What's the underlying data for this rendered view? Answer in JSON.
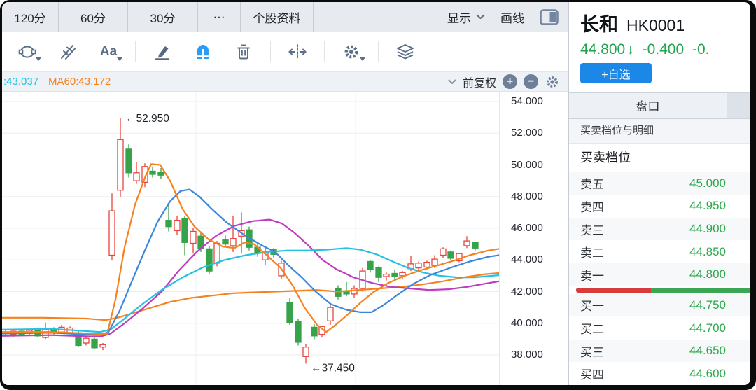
{
  "toolbar_tabs": {
    "items": [
      "120分",
      "60分",
      "30分",
      "···",
      "个股资料"
    ],
    "widths": [
      80,
      98,
      99,
      60,
      103
    ],
    "display_label": "显示",
    "draw_label": "画线"
  },
  "draw_toolbar": {
    "tools": [
      "ellipse-shape-tool",
      "pitchfork-tool",
      "text-tool",
      "brush-tool",
      "magnet-tool",
      "delete-tool",
      "expand-horizontal-tool",
      "settings-tool",
      "layers-tool"
    ],
    "icon_color": "#5d6f88",
    "magnet_color": "#2d9cf4"
  },
  "indicator_bar": {
    "ma_cut_label": ":43.037",
    "ma_cut_color": "#1fc3e6",
    "ma60_label": "MA60:43.172",
    "ma60_color": "#f6821f",
    "adjust_label": "前复权"
  },
  "quote_panel": {
    "name": "长和",
    "code": "HK0001",
    "price": "44.800",
    "direction_arrow": "↓",
    "change": "-0.400",
    "change_pct_partial": "-0.",
    "price_color": "#21a44d",
    "watchlist_button": "+自选",
    "tab": "盘口",
    "detail_header": "买卖档位与明细",
    "section_title": "买卖档位",
    "value_color": "#2ea84e",
    "sells": [
      {
        "label": "卖五",
        "value": "45.000"
      },
      {
        "label": "卖四",
        "value": "44.950"
      },
      {
        "label": "卖三",
        "value": "44.900"
      },
      {
        "label": "卖二",
        "value": "44.850"
      },
      {
        "label": "卖一",
        "value": "44.800"
      }
    ],
    "buys": [
      {
        "label": "买一",
        "value": "44.750"
      },
      {
        "label": "买二",
        "value": "44.700"
      },
      {
        "label": "买三",
        "value": "44.650"
      },
      {
        "label": "买四",
        "value": "44.600"
      }
    ],
    "ratio_bar": {
      "red_pct": 43,
      "green_pct": 57,
      "red": "#d93b3b",
      "green": "#3ba755"
    }
  },
  "chart_data": {
    "type": "candlestick",
    "up_color": "#e8443c",
    "down_color": "#36a24a",
    "grid": {
      "horizontal_step": 2,
      "vertical_x": [
        277,
        505
      ]
    },
    "y_axis": {
      "ticks": [
        "54.000",
        "52.000",
        "50.000",
        "48.000",
        "46.000",
        "44.000",
        "42.000",
        "40.000",
        "38.000"
      ],
      "min": 38,
      "max": 54
    },
    "annotations": [
      {
        "text": "←52.950",
        "candle_index": 14,
        "position": "high"
      },
      {
        "text": "←37.450",
        "candle_index": 37,
        "position": "low"
      }
    ],
    "candles": [
      [
        5,
        39.45,
        39.6,
        39.2,
        39.35
      ],
      [
        16,
        39.3,
        39.55,
        39.15,
        39.5
      ],
      [
        28,
        39.5,
        39.6,
        39.2,
        39.3
      ],
      [
        39,
        39.35,
        39.65,
        39.25,
        39.55
      ],
      [
        51,
        39.6,
        39.7,
        39.1,
        39.2
      ],
      [
        62,
        39.1,
        40.05,
        39.0,
        39.6
      ],
      [
        74,
        39.6,
        39.75,
        39.3,
        39.45
      ],
      [
        85,
        39.45,
        39.9,
        39.35,
        39.75
      ],
      [
        97,
        39.4,
        39.8,
        39.3,
        39.7
      ],
      [
        109,
        39.4,
        39.5,
        38.5,
        38.6
      ],
      [
        120,
        38.75,
        39.15,
        38.6,
        39.05
      ],
      [
        132,
        39.0,
        39.1,
        38.35,
        38.45
      ],
      [
        144,
        38.5,
        38.75,
        38.3,
        38.65
      ],
      [
        157,
        44.3,
        48.2,
        44.0,
        47.1
      ],
      [
        169,
        48.4,
        52.95,
        48.0,
        51.6
      ],
      [
        181,
        51.0,
        51.3,
        49.2,
        49.5
      ],
      [
        192,
        49.0,
        50.2,
        48.8,
        49.5
      ],
      [
        204,
        48.9,
        50.1,
        48.6,
        49.9
      ],
      [
        215,
        49.6,
        49.9,
        49.2,
        49.4
      ],
      [
        227,
        49.55,
        49.8,
        49.1,
        49.35
      ],
      [
        238,
        46.5,
        47.5,
        45.8,
        46.1
      ],
      [
        250,
        45.85,
        46.8,
        45.6,
        46.5
      ],
      [
        261,
        46.6,
        46.8,
        44.3,
        45.1
      ],
      [
        273,
        45.05,
        46.0,
        44.4,
        45.8
      ],
      [
        284,
        45.5,
        45.7,
        44.5,
        44.7
      ],
      [
        296,
        44.7,
        44.9,
        43.1,
        43.3
      ],
      [
        307,
        43.8,
        45.2,
        43.6,
        45.05
      ],
      [
        319,
        45.3,
        45.55,
        44.8,
        45.0
      ],
      [
        330,
        44.9,
        46.8,
        44.5,
        45.35
      ],
      [
        342,
        45.5,
        47.0,
        44.4,
        45.85
      ],
      [
        353,
        45.9,
        46.1,
        44.6,
        44.8
      ],
      [
        365,
        44.8,
        45.0,
        44.2,
        44.45
      ],
      [
        376,
        44.0,
        44.8,
        43.7,
        44.5
      ],
      [
        388,
        44.65,
        44.75,
        44.15,
        44.35
      ],
      [
        399,
        43.0,
        43.95,
        42.8,
        43.8
      ],
      [
        411,
        41.3,
        41.6,
        39.9,
        40.05
      ],
      [
        423,
        40.1,
        40.3,
        38.6,
        38.8
      ],
      [
        434,
        37.9,
        38.7,
        37.45,
        38.5
      ],
      [
        446,
        39.75,
        39.95,
        39.0,
        39.2
      ],
      [
        457,
        39.3,
        39.85,
        39.1,
        39.8
      ],
      [
        469,
        40.15,
        41.2,
        39.9,
        41.0
      ],
      [
        480,
        42.2,
        42.4,
        41.5,
        41.7
      ],
      [
        492,
        42.05,
        42.6,
        41.7,
        41.85
      ],
      [
        503,
        41.85,
        42.4,
        41.6,
        42.2
      ],
      [
        515,
        42.2,
        43.5,
        42.0,
        43.3
      ],
      [
        526,
        43.9,
        44.0,
        43.2,
        43.4
      ],
      [
        538,
        43.5,
        43.6,
        42.6,
        42.9
      ],
      [
        549,
        42.95,
        43.2,
        42.7,
        43.1
      ],
      [
        561,
        43.15,
        43.4,
        42.75,
        42.95
      ],
      [
        572,
        43.0,
        43.3,
        42.8,
        43.2
      ],
      [
        584,
        43.45,
        44.25,
        43.3,
        43.75
      ],
      [
        595,
        43.5,
        43.9,
        43.3,
        43.8
      ],
      [
        607,
        43.55,
        43.95,
        43.4,
        43.85
      ],
      [
        618,
        43.65,
        44.3,
        43.5,
        44.05
      ],
      [
        630,
        44.3,
        44.8,
        44.1,
        44.7
      ],
      [
        641,
        44.5,
        44.6,
        44.0,
        44.1
      ],
      [
        653,
        43.95,
        44.45,
        43.85,
        44.4
      ],
      [
        664,
        44.9,
        45.5,
        44.75,
        45.2
      ],
      [
        676,
        45.1,
        45.15,
        44.6,
        44.75
      ]
    ],
    "ma_lines": [
      {
        "name": "ma-slow-orange",
        "legend": "MA60:43.172",
        "color": "#f6821f",
        "points": [
          [
            0,
            40.35
          ],
          [
            60,
            40.35
          ],
          [
            120,
            40.3
          ],
          [
            148,
            40.2
          ],
          [
            165,
            40.35
          ],
          [
            180,
            40.55
          ],
          [
            210,
            40.95
          ],
          [
            240,
            41.35
          ],
          [
            270,
            41.6
          ],
          [
            300,
            41.75
          ],
          [
            330,
            41.9
          ],
          [
            360,
            41.95
          ],
          [
            390,
            42.0
          ],
          [
            420,
            42.05
          ],
          [
            450,
            42.1
          ],
          [
            480,
            42.0
          ],
          [
            510,
            42.1
          ],
          [
            540,
            42.2
          ],
          [
            570,
            42.3
          ],
          [
            600,
            42.45
          ],
          [
            630,
            42.65
          ],
          [
            660,
            42.9
          ],
          [
            690,
            43.1
          ],
          [
            710,
            43.17
          ]
        ]
      },
      {
        "name": "ma-magenta",
        "legend": null,
        "color": "#be3cbe",
        "points": [
          [
            0,
            39.2
          ],
          [
            70,
            39.25
          ],
          [
            140,
            39.15
          ],
          [
            155,
            39.35
          ],
          [
            175,
            40.0
          ],
          [
            200,
            40.9
          ],
          [
            228,
            42.0
          ],
          [
            252,
            43.3
          ],
          [
            278,
            44.5
          ],
          [
            305,
            45.5
          ],
          [
            332,
            46.15
          ],
          [
            358,
            46.45
          ],
          [
            382,
            46.55
          ],
          [
            400,
            46.3
          ],
          [
            418,
            45.7
          ],
          [
            438,
            44.9
          ],
          [
            458,
            44.0
          ],
          [
            478,
            43.4
          ],
          [
            502,
            42.9
          ],
          [
            528,
            42.55
          ],
          [
            555,
            42.3
          ],
          [
            582,
            42.2
          ],
          [
            610,
            42.1
          ],
          [
            638,
            42.15
          ],
          [
            665,
            42.3
          ],
          [
            690,
            42.5
          ],
          [
            710,
            42.65
          ]
        ]
      },
      {
        "name": "ma-cyan",
        "legend": ":43.037",
        "color": "#25c1e5",
        "points": [
          [
            0,
            39.6
          ],
          [
            70,
            39.65
          ],
          [
            140,
            39.45
          ],
          [
            155,
            39.6
          ],
          [
            175,
            40.3
          ],
          [
            200,
            41.2
          ],
          [
            228,
            42.1
          ],
          [
            258,
            42.9
          ],
          [
            288,
            43.55
          ],
          [
            318,
            44.0
          ],
          [
            348,
            44.3
          ],
          [
            378,
            44.5
          ],
          [
            408,
            44.6
          ],
          [
            438,
            44.6
          ],
          [
            465,
            44.65
          ],
          [
            492,
            44.75
          ],
          [
            512,
            44.65
          ],
          [
            535,
            44.35
          ],
          [
            558,
            43.9
          ],
          [
            580,
            43.5
          ],
          [
            602,
            43.2
          ],
          [
            625,
            43.0
          ],
          [
            650,
            42.9
          ],
          [
            675,
            42.9
          ],
          [
            710,
            43.04
          ]
        ]
      },
      {
        "name": "ma-blue",
        "legend": null,
        "color": "#3b87db",
        "points": [
          [
            0,
            39.35
          ],
          [
            70,
            39.4
          ],
          [
            140,
            39.25
          ],
          [
            152,
            39.45
          ],
          [
            168,
            40.8
          ],
          [
            185,
            42.6
          ],
          [
            203,
            44.5
          ],
          [
            222,
            46.4
          ],
          [
            240,
            47.7
          ],
          [
            255,
            48.35
          ],
          [
            268,
            48.45
          ],
          [
            282,
            48.0
          ],
          [
            300,
            47.2
          ],
          [
            320,
            46.4
          ],
          [
            345,
            45.6
          ],
          [
            370,
            44.95
          ],
          [
            390,
            44.5
          ],
          [
            408,
            43.7
          ],
          [
            428,
            42.9
          ],
          [
            448,
            42.0
          ],
          [
            470,
            41.2
          ],
          [
            492,
            40.85
          ],
          [
            512,
            40.7
          ],
          [
            528,
            40.7
          ],
          [
            545,
            41.15
          ],
          [
            565,
            41.8
          ],
          [
            588,
            42.5
          ],
          [
            612,
            43.05
          ],
          [
            640,
            43.5
          ],
          [
            668,
            43.9
          ],
          [
            695,
            44.2
          ],
          [
            710,
            44.3
          ]
        ]
      },
      {
        "name": "ma-fast-orange",
        "legend": null,
        "color": "#f6821f",
        "points": [
          [
            0,
            39.45
          ],
          [
            70,
            39.45
          ],
          [
            130,
            39.35
          ],
          [
            150,
            39.3
          ],
          [
            162,
            41.5
          ],
          [
            175,
            44.8
          ],
          [
            190,
            47.5
          ],
          [
            205,
            49.3
          ],
          [
            213,
            50.05
          ],
          [
            226,
            50.0
          ],
          [
            240,
            49.0
          ],
          [
            258,
            47.2
          ],
          [
            275,
            46.1
          ],
          [
            295,
            45.3
          ],
          [
            315,
            44.85
          ],
          [
            332,
            44.75
          ],
          [
            346,
            45.1
          ],
          [
            360,
            45.0
          ],
          [
            378,
            44.3
          ],
          [
            398,
            43.5
          ],
          [
            415,
            42.4
          ],
          [
            432,
            41.0
          ],
          [
            450,
            39.9
          ],
          [
            463,
            39.45
          ],
          [
            478,
            39.95
          ],
          [
            495,
            40.6
          ],
          [
            512,
            41.3
          ],
          [
            530,
            41.95
          ],
          [
            552,
            42.55
          ],
          [
            575,
            43.0
          ],
          [
            598,
            43.35
          ],
          [
            622,
            43.65
          ],
          [
            645,
            43.95
          ],
          [
            668,
            44.3
          ],
          [
            695,
            44.6
          ],
          [
            710,
            44.7
          ]
        ]
      }
    ]
  }
}
